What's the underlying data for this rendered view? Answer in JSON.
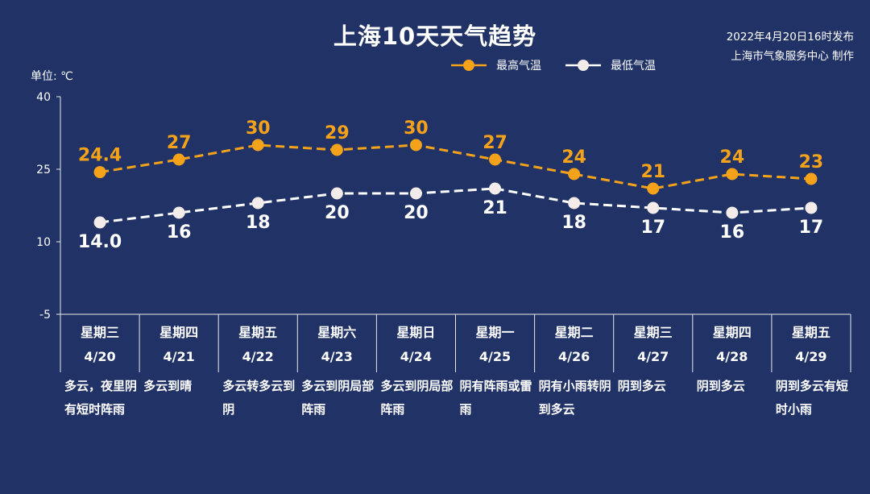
{
  "header": {
    "title": "上海10天天气趋势",
    "published": "2022年4月20日16时发布",
    "producer": "上海市气象服务中心 制作",
    "unit": "单位: ℃"
  },
  "legend": {
    "high_label": "最高气温",
    "low_label": "最低气温"
  },
  "colors": {
    "background": "#213366",
    "high": "#F5A21B",
    "low": "#FFFFFF"
  },
  "chart_data": {
    "type": "line",
    "title": "上海10天天气趋势",
    "ylim": [
      -5,
      40
    ],
    "yticks": [
      "-5",
      "10",
      "25",
      "40"
    ],
    "grid": false,
    "legend_position": "top-right",
    "categories": [
      "4/20",
      "4/21",
      "4/22",
      "4/23",
      "4/24",
      "4/25",
      "4/26",
      "4/27",
      "4/28",
      "4/29"
    ],
    "series": [
      {
        "name": "最高气温",
        "values": [
          24.4,
          27,
          30,
          29,
          30,
          27,
          24,
          21,
          24,
          23
        ],
        "labels": [
          "24.4",
          "27",
          "30",
          "29",
          "30",
          "27",
          "24",
          "21",
          "24",
          "23"
        ]
      },
      {
        "name": "最低气温",
        "values": [
          14.0,
          16,
          18,
          20,
          20,
          21,
          18,
          17,
          16,
          17
        ],
        "labels": [
          "14.0",
          "16",
          "18",
          "20",
          "20",
          "21",
          "18",
          "17",
          "16",
          "17"
        ]
      }
    ]
  },
  "days": [
    {
      "weekday": "星期三",
      "date": "4/20",
      "weather": "多云，夜里阴有短时阵雨"
    },
    {
      "weekday": "星期四",
      "date": "4/21",
      "weather": "多云到晴"
    },
    {
      "weekday": "星期五",
      "date": "4/22",
      "weather": "多云转多云到阴"
    },
    {
      "weekday": "星期六",
      "date": "4/23",
      "weather": "多云到阴局部阵雨"
    },
    {
      "weekday": "星期日",
      "date": "4/24",
      "weather": "多云到阴局部阵雨"
    },
    {
      "weekday": "星期一",
      "date": "4/25",
      "weather": "阴有阵雨或雷雨"
    },
    {
      "weekday": "星期二",
      "date": "4/26",
      "weather": "阴有小雨转阴到多云"
    },
    {
      "weekday": "星期三",
      "date": "4/27",
      "weather": "阴到多云"
    },
    {
      "weekday": "星期四",
      "date": "4/28",
      "weather": "阴到多云"
    },
    {
      "weekday": "星期五",
      "date": "4/29",
      "weather": "阴到多云有短时小雨"
    }
  ]
}
